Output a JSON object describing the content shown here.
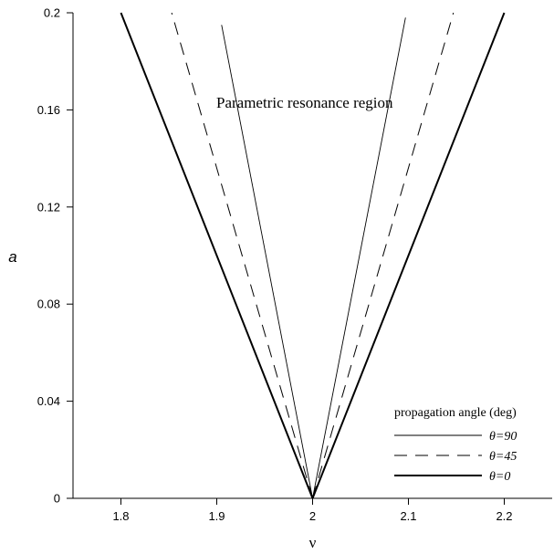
{
  "chart_data": {
    "type": "line",
    "title": "",
    "annotation": "Parametric resonance region",
    "xlabel": "ν",
    "ylabel": "a",
    "xlim": [
      1.75,
      2.25
    ],
    "ylim": [
      0,
      0.2
    ],
    "x_ticks": [
      1.8,
      1.9,
      2,
      2.1,
      2.2
    ],
    "x_tick_labels": [
      "1.8",
      "1.9",
      "2",
      "2.1",
      "2.2"
    ],
    "y_ticks": [
      0,
      0.04,
      0.08,
      0.12,
      0.16,
      0.2
    ],
    "y_tick_labels": [
      "0",
      "0.04",
      "0.08",
      "0.12",
      "0.16",
      "0.2"
    ],
    "grid": false,
    "legend": {
      "title": "propagation angle (deg)",
      "placement": "bottom-right"
    },
    "series": [
      {
        "name": "θ=90",
        "style": "thin-solid",
        "branches": [
          {
            "x": [
              2.0,
              1.905
            ],
            "y": [
              0,
              0.195
            ]
          },
          {
            "x": [
              2.0,
              2.097
            ],
            "y": [
              0,
              0.198
            ]
          }
        ]
      },
      {
        "name": "θ=45",
        "style": "dashed",
        "branches": [
          {
            "x": [
              2.0,
              1.853
            ],
            "y": [
              0,
              0.2
            ]
          },
          {
            "x": [
              2.0,
              2.147
            ],
            "y": [
              0,
              0.2
            ]
          }
        ]
      },
      {
        "name": "θ=0",
        "style": "thick-solid",
        "branches": [
          {
            "x": [
              2.0,
              1.8
            ],
            "y": [
              0,
              0.2
            ]
          },
          {
            "x": [
              2.0,
              2.2
            ],
            "y": [
              0,
              0.2
            ]
          }
        ]
      }
    ]
  }
}
